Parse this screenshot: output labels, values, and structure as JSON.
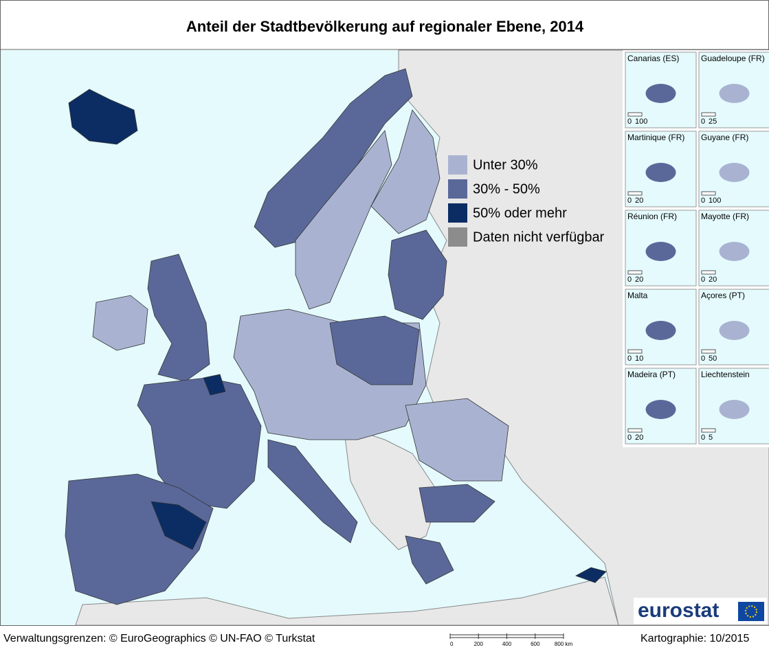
{
  "header": {
    "title": "Anteil der Stadtbevölkerung auf regionaler Ebene, 2014"
  },
  "legend": [
    {
      "label": "Unter 30%",
      "color": "#a9b3d1"
    },
    {
      "label": "30% - 50%",
      "color": "#5a6899"
    },
    {
      "label": "50% oder mehr",
      "color": "#0b2d63"
    },
    {
      "label": "Daten nicht verfügbar",
      "color": "#8c8c8c"
    }
  ],
  "insets": [
    {
      "name": "Canarias (ES)",
      "scale": [
        "0",
        "100"
      ]
    },
    {
      "name": "Guadeloupe (FR)",
      "scale": [
        "0",
        "25"
      ]
    },
    {
      "name": "Martinique (FR)",
      "scale": [
        "0",
        "20"
      ]
    },
    {
      "name": "Guyane (FR)",
      "scale": [
        "0",
        "100"
      ]
    },
    {
      "name": "Réunion (FR)",
      "scale": [
        "0",
        "20"
      ]
    },
    {
      "name": "Mayotte (FR)",
      "scale": [
        "0",
        "20"
      ]
    },
    {
      "name": "Malta",
      "scale": [
        "0",
        "10"
      ]
    },
    {
      "name": "Açores (PT)",
      "scale": [
        "0",
        "50"
      ]
    },
    {
      "name": "Madeira (PT)",
      "scale": [
        "0",
        "20"
      ]
    },
    {
      "name": "Liechtenstein",
      "scale": [
        "0",
        "5"
      ]
    }
  ],
  "footer": {
    "source": "Verwaltungsgrenzen: © EuroGeographics © UN-FAO © Turkstat",
    "scale_bar": [
      "0",
      "200",
      "400",
      "600",
      "800 km"
    ],
    "date": "Kartographie: 10/2015",
    "logo": "eurostat"
  }
}
